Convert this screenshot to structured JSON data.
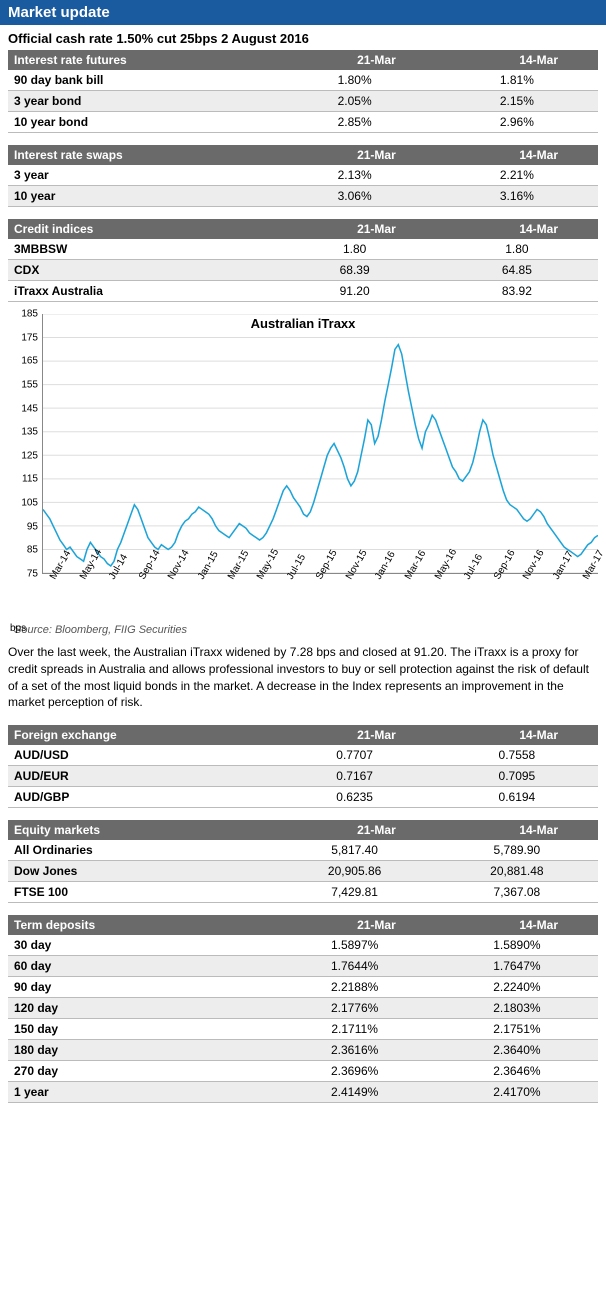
{
  "header": {
    "title": "Market update"
  },
  "subheader": "Official cash rate 1.50% cut 25bps 2 August 2016",
  "tables": {
    "irf": {
      "heading": "Interest rate futures",
      "col1": "21-Mar",
      "col2": "14-Mar",
      "rows": [
        {
          "label": "90 day bank bill",
          "v1": "1.80%",
          "v2": "1.81%"
        },
        {
          "label": "3 year bond",
          "v1": "2.05%",
          "v2": "2.15%"
        },
        {
          "label": "10 year bond",
          "v1": "2.85%",
          "v2": "2.96%"
        }
      ]
    },
    "irs": {
      "heading": "Interest rate swaps",
      "col1": "21-Mar",
      "col2": "14-Mar",
      "rows": [
        {
          "label": "3 year",
          "v1": "2.13%",
          "v2": "2.21%"
        },
        {
          "label": "10 year",
          "v1": "3.06%",
          "v2": "3.16%"
        }
      ]
    },
    "credit": {
      "heading": "Credit indices",
      "col1": "21-Mar",
      "col2": "14-Mar",
      "rows": [
        {
          "label": "3MBBSW",
          "v1": "1.80",
          "v2": "1.80"
        },
        {
          "label": "CDX",
          "v1": "68.39",
          "v2": "64.85"
        },
        {
          "label": "iTraxx Australia",
          "v1": "91.20",
          "v2": "83.92"
        }
      ]
    },
    "fx": {
      "heading": "Foreign exchange",
      "col1": "21-Mar",
      "col2": "14-Mar",
      "rows": [
        {
          "label": "AUD/USD",
          "v1": "0.7707",
          "v2": "0.7558"
        },
        {
          "label": "AUD/EUR",
          "v1": "0.7167",
          "v2": "0.7095"
        },
        {
          "label": "AUD/GBP",
          "v1": "0.6235",
          "v2": "0.6194"
        }
      ]
    },
    "equity": {
      "heading": "Equity markets",
      "col1": "21-Mar",
      "col2": "14-Mar",
      "rows": [
        {
          "label": "All Ordinaries",
          "v1": "5,817.40",
          "v2": "5,789.90"
        },
        {
          "label": "Dow Jones",
          "v1": "20,905.86",
          "v2": "20,881.48"
        },
        {
          "label": "FTSE 100",
          "v1": "7,429.81",
          "v2": "7,367.08"
        }
      ]
    },
    "td": {
      "heading": "Term deposits",
      "col1": "21-Mar",
      "col2": "14-Mar",
      "rows": [
        {
          "label": "30 day",
          "v1": "1.5897%",
          "v2": "1.5890%"
        },
        {
          "label": "60 day",
          "v1": "1.7644%",
          "v2": "1.7647%"
        },
        {
          "label": "90 day",
          "v1": "2.2188%",
          "v2": "2.2240%"
        },
        {
          "label": "120 day",
          "v1": "2.1776%",
          "v2": "2.1803%"
        },
        {
          "label": "150 day",
          "v1": "2.1711%",
          "v2": "2.1751%"
        },
        {
          "label": "180 day",
          "v1": "2.3616%",
          "v2": "2.3640%"
        },
        {
          "label": "270 day",
          "v1": "2.3696%",
          "v2": "2.3646%"
        },
        {
          "label": "1 year",
          "v1": "2.4149%",
          "v2": "2.4170%"
        }
      ]
    }
  },
  "chart": {
    "type": "line",
    "title": "Australian iTraxx",
    "unit_label": "bps",
    "line_color": "#1ca4d8",
    "background_color": "#ffffff",
    "grid_color": "#dddddd",
    "ylim": [
      75,
      185
    ],
    "ytick_step": 10,
    "yticks": [
      75,
      85,
      95,
      105,
      115,
      125,
      135,
      145,
      155,
      165,
      175,
      185
    ],
    "xticks": [
      "Mar-14",
      "May-14",
      "Jul-14",
      "Sep-14",
      "Nov-14",
      "Jan-15",
      "Mar-15",
      "May-15",
      "Jul-15",
      "Sep-15",
      "Nov-15",
      "Jan-16",
      "Mar-16",
      "May-16",
      "Jul-16",
      "Sep-16",
      "Nov-16",
      "Jan-17",
      "Mar-17"
    ],
    "xtick_positions_months": [
      0,
      2,
      4,
      6,
      8,
      10,
      12,
      14,
      16,
      18,
      20,
      22,
      24,
      26,
      28,
      30,
      32,
      34,
      36
    ],
    "x_range_months": 36.5,
    "values": [
      102,
      100,
      98,
      95,
      92,
      89,
      87,
      85,
      86,
      84,
      82,
      81,
      80,
      85,
      88,
      86,
      84,
      82,
      81,
      79,
      78,
      80,
      85,
      88,
      92,
      96,
      100,
      104,
      102,
      98,
      94,
      90,
      88,
      86,
      85,
      87,
      86,
      85,
      86,
      88,
      92,
      95,
      97,
      98,
      100,
      101,
      103,
      102,
      101,
      100,
      98,
      95,
      93,
      92,
      91,
      90,
      92,
      94,
      96,
      95,
      94,
      92,
      91,
      90,
      89,
      90,
      92,
      95,
      98,
      102,
      106,
      110,
      112,
      110,
      107,
      105,
      103,
      100,
      99,
      101,
      105,
      110,
      115,
      120,
      125,
      128,
      130,
      127,
      124,
      120,
      115,
      112,
      114,
      118,
      125,
      132,
      140,
      138,
      130,
      133,
      140,
      148,
      155,
      162,
      170,
      172,
      168,
      160,
      152,
      145,
      138,
      132,
      128,
      135,
      138,
      142,
      140,
      136,
      132,
      128,
      124,
      120,
      118,
      115,
      114,
      116,
      118,
      122,
      128,
      135,
      140,
      138,
      132,
      125,
      120,
      115,
      110,
      106,
      104,
      103,
      102,
      100,
      98,
      97,
      98,
      100,
      102,
      101,
      99,
      96,
      94,
      92,
      90,
      88,
      86,
      85,
      84,
      83,
      82,
      83,
      85,
      87,
      88,
      90,
      91
    ]
  },
  "chart_source": "Source: Bloomberg, FIIG Securities",
  "body_text": "Over the last week, the Australian iTraxx widened by 7.28 bps and closed at 91.20. The iTraxx is a proxy for credit spreads in Australia and allows professional investors to buy or sell protection against the risk of default of a set of the most liquid bonds in the market. A decrease in the Index represents an improvement in the market perception of risk."
}
